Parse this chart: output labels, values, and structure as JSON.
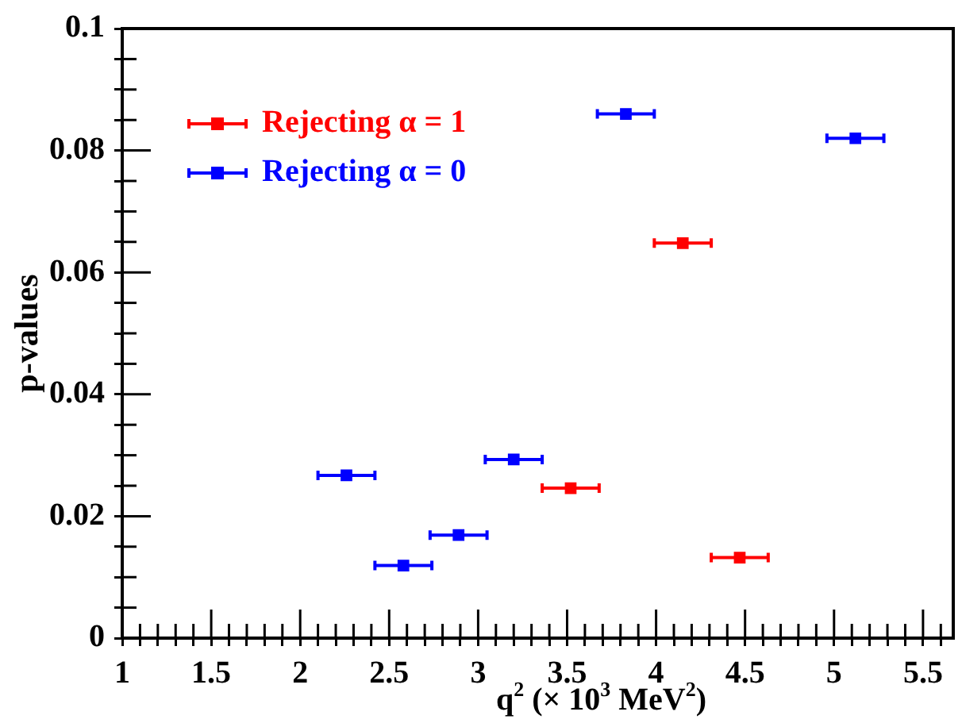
{
  "chart_data": {
    "type": "scatter",
    "xlabel": "q$^{2}$ (× 10$^{3}$ MeV$^{2}$)",
    "ylabel": "p-values",
    "xlim": [
      1,
      5.67
    ],
    "ylim": [
      0,
      0.1
    ],
    "xticks": [
      1,
      {
        "value": 1.1,
        "label": null
      },
      {
        "value": 1.2,
        "label": null
      },
      {
        "value": 1.3,
        "label": null
      },
      {
        "value": 1.4,
        "label": null
      },
      1.5,
      {
        "value": 1.6,
        "label": null
      },
      {
        "value": 1.7,
        "label": null
      },
      {
        "value": 1.8,
        "label": null
      },
      {
        "value": 1.9,
        "label": null
      },
      2,
      {
        "value": 2.1,
        "label": null
      },
      {
        "value": 2.2,
        "label": null
      },
      {
        "value": 2.3,
        "label": null
      },
      {
        "value": 2.4,
        "label": null
      },
      2.5,
      {
        "value": 2.6,
        "label": null
      },
      {
        "value": 2.7,
        "label": null
      },
      {
        "value": 2.8,
        "label": null
      },
      {
        "value": 2.9,
        "label": null
      },
      3,
      {
        "value": 3.1,
        "label": null
      },
      {
        "value": 3.2,
        "label": null
      },
      {
        "value": 3.3,
        "label": null
      },
      {
        "value": 3.4,
        "label": null
      },
      3.5,
      {
        "value": 3.6,
        "label": null
      },
      {
        "value": 3.7,
        "label": null
      },
      {
        "value": 3.8,
        "label": null
      },
      {
        "value": 3.9,
        "label": null
      },
      4,
      {
        "value": 4.1,
        "label": null
      },
      {
        "value": 4.2,
        "label": null
      },
      {
        "value": 4.3,
        "label": null
      },
      {
        "value": 4.4,
        "label": null
      },
      4.5,
      {
        "value": 4.6,
        "label": null
      },
      {
        "value": 4.7,
        "label": null
      },
      {
        "value": 4.8,
        "label": null
      },
      {
        "value": 4.9,
        "label": null
      },
      5,
      {
        "value": 5.1,
        "label": null
      },
      {
        "value": 5.2,
        "label": null
      },
      {
        "value": 5.3,
        "label": null
      },
      {
        "value": 5.4,
        "label": null
      },
      5.5,
      {
        "value": 5.6,
        "label": null
      }
    ],
    "yticks": [
      0,
      {
        "value": 0.005,
        "label": null
      },
      {
        "value": 0.01,
        "label": null
      },
      {
        "value": 0.015,
        "label": null
      },
      0.02,
      {
        "value": 0.025,
        "label": null
      },
      {
        "value": 0.03,
        "label": null
      },
      {
        "value": 0.035,
        "label": null
      },
      0.04,
      {
        "value": 0.045,
        "label": null
      },
      {
        "value": 0.05,
        "label": null
      },
      {
        "value": 0.055,
        "label": null
      },
      0.06,
      {
        "value": 0.065,
        "label": null
      },
      {
        "value": 0.07,
        "label": null
      },
      {
        "value": 0.075,
        "label": null
      },
      0.08,
      {
        "value": 0.085,
        "label": null
      },
      {
        "value": 0.09,
        "label": null
      },
      {
        "value": 0.095,
        "label": null
      },
      0.1
    ],
    "grid": false,
    "legend": "top left",
    "marker": "square",
    "series": [
      {
        "name": "Rejecting α = 1",
        "color": "#ff0000",
        "x": [
          3.52,
          4.15,
          4.47
        ],
        "values": [
          0.0246,
          0.0648,
          0.0132
        ],
        "xerrors": [
          0.16,
          0.16,
          0.16
        ]
      },
      {
        "name": "Rejecting α = 0",
        "color": "#0000ff",
        "x": [
          2.26,
          2.58,
          2.89,
          3.2,
          3.83,
          5.12
        ],
        "values": [
          0.0267,
          0.0119,
          0.0169,
          0.0293,
          0.086,
          0.082
        ],
        "xerrors": [
          0.16,
          0.16,
          0.16,
          0.16,
          0.16,
          0.16
        ]
      }
    ]
  }
}
